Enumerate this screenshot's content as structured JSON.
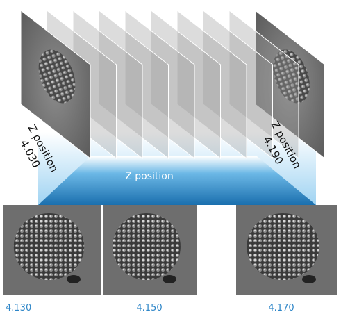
{
  "first_slice": {
    "label": "Z position",
    "value": "4.030"
  },
  "last_slice": {
    "label": "Z position",
    "value": "4.190"
  },
  "band_label": "Z position",
  "images": [
    {
      "label": "4.130"
    },
    {
      "label": "4.150"
    },
    {
      "label": "4.170"
    }
  ]
}
